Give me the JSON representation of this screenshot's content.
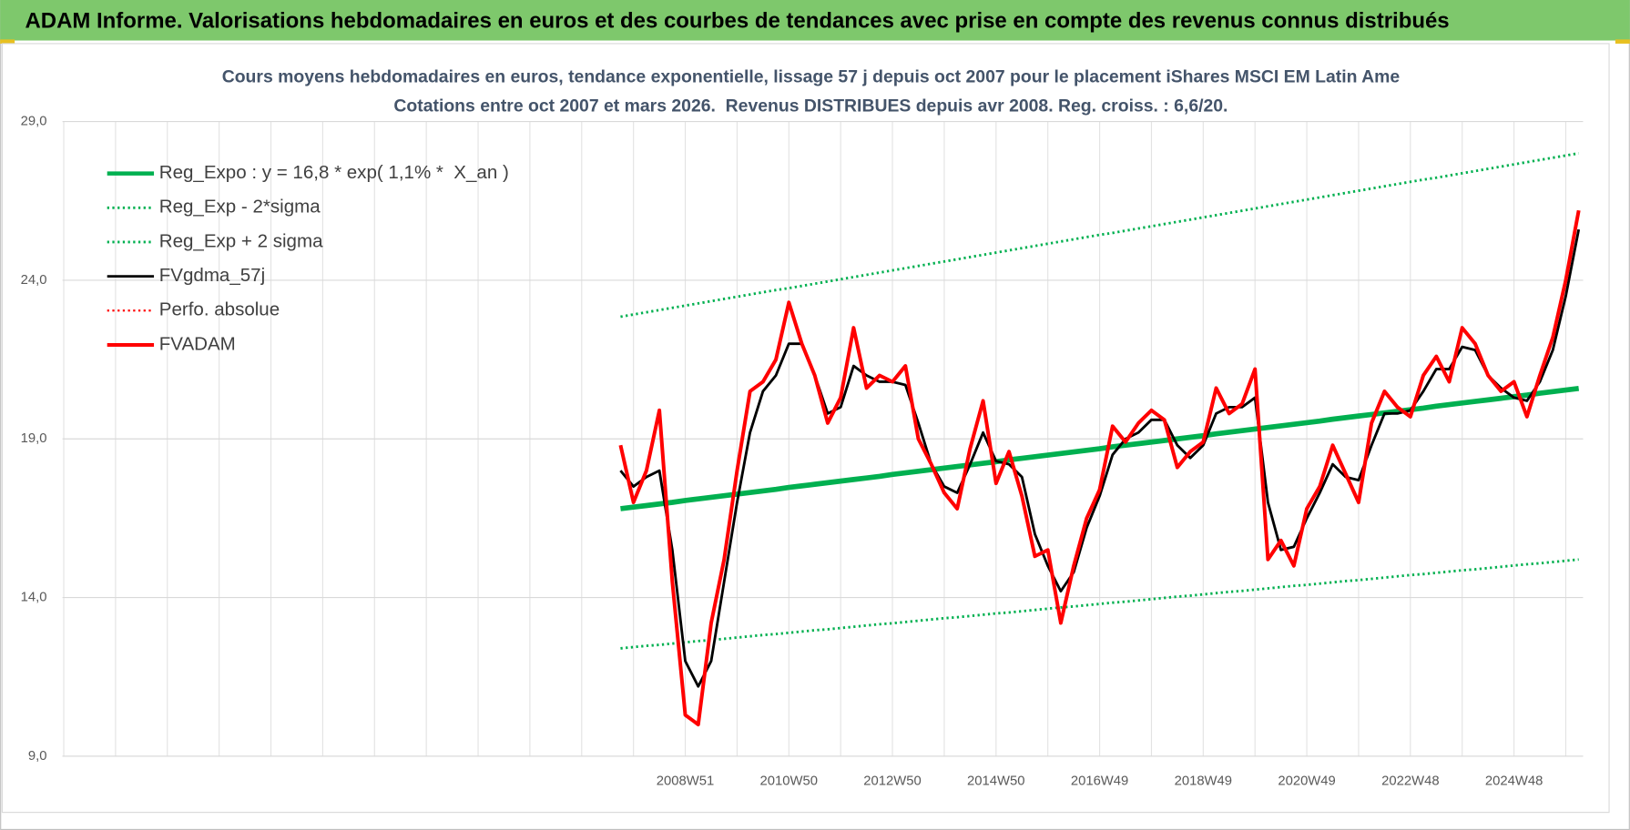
{
  "header": {
    "title": "ADAM Informe. Valorisations hebdomadaires en euros et des courbes de tendances avec prise en compte des revenus connus distribués"
  },
  "chart_data": {
    "type": "line",
    "title": "Cours moyens hebdomadaires en euros, tendance exponentielle, lissage 57 j depuis oct 2007 pour le placement iShares MSCI EM Latin Ame",
    "subtitle": "Cotations entre oct 2007 et mars 2026.  Revenus DISTRIBUES depuis avr 2008. Reg. croiss. : 6,6/20.",
    "categories": [
      null,
      null,
      null,
      null,
      null,
      null,
      null,
      null,
      null,
      null,
      null,
      null,
      null,
      null,
      null,
      null,
      null,
      null,
      null,
      null,
      null,
      null,
      null,
      null,
      null,
      null,
      null,
      null,
      null,
      null,
      null,
      null,
      null,
      null,
      null,
      null,
      null,
      null,
      null,
      null,
      null,
      null,
      null,
      null,
      null,
      null,
      null,
      null,
      "2008W51",
      null,
      null,
      null,
      null,
      null,
      null,
      null,
      "2010W50",
      null,
      null,
      null,
      null,
      null,
      null,
      null,
      "2012W50",
      null,
      null,
      null,
      null,
      null,
      null,
      null,
      "2014W50",
      null,
      null,
      null,
      null,
      null,
      null,
      null,
      "2016W49",
      null,
      null,
      null,
      null,
      null,
      null,
      null,
      "2018W49",
      null,
      null,
      null,
      null,
      null,
      null,
      null,
      "2020W49",
      null,
      null,
      null,
      null,
      null,
      null,
      null,
      "2022W48",
      null,
      null,
      null,
      null,
      null,
      null,
      null,
      "2024W48",
      null,
      null,
      null,
      null,
      null
    ],
    "ylim": [
      9,
      29
    ],
    "yticks": [
      {
        "value": 9,
        "label": "9,0"
      },
      {
        "value": 14,
        "label": "14,0"
      },
      {
        "value": 19,
        "label": "19,0"
      },
      {
        "value": 24,
        "label": "24,0"
      },
      {
        "value": 29,
        "label": "29,0"
      }
    ],
    "grid": true,
    "legend": "top-left",
    "series": [
      {
        "name": "Reg_Expo : y = 16,8 * exp( 1,1% *  X_an )",
        "color": "#00b050",
        "dash": "solid",
        "width": 5,
        "values": [
          null,
          null,
          null,
          null,
          null,
          null,
          null,
          null,
          null,
          null,
          null,
          null,
          null,
          null,
          null,
          null,
          null,
          null,
          null,
          null,
          null,
          null,
          null,
          null,
          null,
          null,
          null,
          null,
          null,
          null,
          null,
          null,
          null,
          null,
          null,
          null,
          null,
          null,
          null,
          null,
          null,
          null,
          null,
          16.8,
          16.85,
          16.9,
          16.95,
          17.0,
          17.06,
          17.11,
          17.16,
          17.21,
          17.26,
          17.31,
          17.36,
          17.41,
          17.47,
          17.52,
          17.57,
          17.62,
          17.67,
          17.72,
          17.77,
          17.82,
          17.88,
          17.93,
          17.98,
          18.03,
          18.08,
          18.13,
          18.18,
          18.23,
          18.28,
          18.34,
          18.39,
          18.44,
          18.49,
          18.54,
          18.59,
          18.64,
          18.69,
          18.75,
          18.8,
          18.85,
          18.9,
          18.95,
          19.0,
          19.05,
          19.1,
          19.16,
          19.21,
          19.26,
          19.31,
          19.36,
          19.41,
          19.46,
          19.51,
          19.56,
          19.62,
          19.67,
          19.72,
          19.77,
          19.82,
          19.87,
          19.92,
          19.97,
          20.03,
          20.08,
          20.13,
          20.18,
          20.23,
          20.28,
          20.33,
          20.38,
          20.44,
          20.49,
          20.54,
          20.59
        ]
      },
      {
        "name": "Reg_Exp - 2*sigma",
        "color": "#00b050",
        "dash": "dotted",
        "width": 2.5,
        "values": [
          null,
          null,
          null,
          null,
          null,
          null,
          null,
          null,
          null,
          null,
          null,
          null,
          null,
          null,
          null,
          null,
          null,
          null,
          null,
          null,
          null,
          null,
          null,
          null,
          null,
          null,
          null,
          null,
          null,
          null,
          null,
          null,
          null,
          null,
          null,
          null,
          null,
          null,
          null,
          null,
          null,
          null,
          null,
          12.4,
          12.44,
          12.48,
          12.51,
          12.55,
          12.59,
          12.63,
          12.66,
          12.7,
          12.74,
          12.78,
          12.82,
          12.85,
          12.89,
          12.93,
          12.97,
          13.0,
          13.04,
          13.08,
          13.12,
          13.16,
          13.19,
          13.23,
          13.27,
          13.31,
          13.35,
          13.38,
          13.42,
          13.46,
          13.5,
          13.53,
          13.57,
          13.61,
          13.65,
          13.69,
          13.72,
          13.76,
          13.8,
          13.84,
          13.87,
          13.91,
          13.95,
          13.99,
          14.03,
          14.06,
          14.1,
          14.14,
          14.18,
          14.21,
          14.25,
          14.29,
          14.33,
          14.37,
          14.4,
          14.44,
          14.48,
          14.52,
          14.55,
          14.59,
          14.63,
          14.67,
          14.71,
          14.74,
          14.78,
          14.82,
          14.86,
          14.89,
          14.93,
          14.97,
          15.01,
          15.05,
          15.08,
          15.12,
          15.16,
          15.2
        ]
      },
      {
        "name": "Reg_Exp + 2 sigma",
        "color": "#00b050",
        "dash": "dotted",
        "width": 2.5,
        "values": [
          null,
          null,
          null,
          null,
          null,
          null,
          null,
          null,
          null,
          null,
          null,
          null,
          null,
          null,
          null,
          null,
          null,
          null,
          null,
          null,
          null,
          null,
          null,
          null,
          null,
          null,
          null,
          null,
          null,
          null,
          null,
          null,
          null,
          null,
          null,
          null,
          null,
          null,
          null,
          null,
          null,
          null,
          null,
          22.85,
          22.92,
          22.99,
          23.06,
          23.13,
          23.2,
          23.27,
          23.34,
          23.41,
          23.48,
          23.55,
          23.62,
          23.69,
          23.75,
          23.82,
          23.89,
          23.96,
          24.03,
          24.1,
          24.17,
          24.24,
          24.31,
          24.38,
          24.45,
          24.52,
          24.59,
          24.66,
          24.73,
          24.8,
          24.87,
          24.94,
          25.01,
          25.08,
          25.15,
          25.22,
          25.29,
          25.36,
          25.43,
          25.49,
          25.56,
          25.63,
          25.7,
          25.77,
          25.84,
          25.91,
          25.98,
          26.05,
          26.12,
          26.19,
          26.26,
          26.33,
          26.4,
          26.47,
          26.54,
          26.61,
          26.68,
          26.75,
          26.82,
          26.89,
          26.96,
          27.03,
          27.1,
          27.17,
          27.23,
          27.3,
          27.37,
          27.44,
          27.51,
          27.58,
          27.65,
          27.72,
          27.79,
          27.86,
          27.93,
          28.0
        ]
      },
      {
        "name": "FVgdma_57j",
        "color": "#000000",
        "dash": "solid",
        "width": 2.5,
        "values": [
          null,
          null,
          null,
          null,
          null,
          null,
          null,
          null,
          null,
          null,
          null,
          null,
          null,
          null,
          null,
          null,
          null,
          null,
          null,
          null,
          null,
          null,
          null,
          null,
          null,
          null,
          null,
          null,
          null,
          null,
          null,
          null,
          null,
          null,
          null,
          null,
          null,
          null,
          null,
          null,
          null,
          null,
          null,
          18.0,
          17.5,
          17.8,
          18.0,
          15.5,
          12.0,
          11.2,
          12.0,
          14.5,
          17.0,
          19.2,
          20.5,
          21.0,
          22.0,
          22.0,
          21.0,
          19.8,
          20.0,
          21.3,
          21.0,
          20.8,
          20.8,
          20.7,
          19.5,
          18.2,
          17.5,
          17.3,
          18.2,
          19.2,
          18.3,
          18.2,
          17.8,
          16.0,
          15.0,
          14.2,
          14.8,
          16.2,
          17.2,
          18.5,
          19.0,
          19.2,
          19.6,
          19.6,
          18.8,
          18.4,
          18.8,
          19.8,
          20.0,
          20.0,
          20.3,
          17.0,
          15.5,
          15.6,
          16.5,
          17.3,
          18.2,
          17.8,
          17.7,
          18.8,
          19.8,
          19.8,
          19.9,
          20.5,
          21.2,
          21.2,
          21.9,
          21.8,
          21.0,
          20.6,
          20.3,
          20.2,
          20.8,
          21.8,
          23.5,
          25.6
        ]
      },
      {
        "name": "Perfo. absolue",
        "color": "#ff0000",
        "dash": "dotted",
        "width": 2,
        "values": [
          null,
          null,
          null,
          null,
          null,
          null,
          null,
          null,
          null,
          null,
          null,
          null,
          null,
          null,
          null,
          null,
          null,
          null,
          null,
          null,
          null,
          null,
          null,
          null,
          null,
          null,
          null,
          null,
          null,
          null,
          null,
          null,
          null,
          null,
          null,
          null,
          null,
          null,
          null,
          null,
          null,
          null,
          null,
          null,
          null,
          null,
          null,
          null,
          null,
          null,
          null,
          null,
          null,
          null,
          null,
          null,
          null,
          null,
          null,
          null,
          null,
          null,
          null,
          null,
          null,
          null,
          null,
          null,
          null,
          null,
          null,
          null,
          null,
          null,
          null,
          null,
          null,
          null,
          null,
          null,
          null,
          null,
          null,
          null,
          null,
          null,
          null,
          null,
          null,
          null,
          null,
          null,
          null,
          null,
          null,
          null,
          null,
          null,
          null,
          null,
          null,
          null,
          null,
          null,
          null,
          null,
          null,
          null,
          null,
          null,
          null,
          null,
          null,
          null,
          null,
          null,
          null,
          null
        ]
      },
      {
        "name": "FVADAM",
        "color": "#ff0000",
        "dash": "solid",
        "width": 3.5,
        "values": [
          null,
          null,
          null,
          null,
          null,
          null,
          null,
          null,
          null,
          null,
          null,
          null,
          null,
          null,
          null,
          null,
          null,
          null,
          null,
          null,
          null,
          null,
          null,
          null,
          null,
          null,
          null,
          null,
          null,
          null,
          null,
          null,
          null,
          null,
          null,
          null,
          null,
          null,
          null,
          null,
          null,
          null,
          null,
          18.8,
          17.0,
          18.0,
          19.9,
          14.5,
          10.3,
          10.0,
          13.2,
          15.2,
          18.0,
          20.5,
          20.8,
          21.5,
          23.3,
          22.0,
          21.0,
          19.5,
          20.3,
          22.5,
          20.6,
          21.0,
          20.8,
          21.3,
          19.0,
          18.2,
          17.3,
          16.8,
          18.7,
          20.2,
          17.6,
          18.6,
          17.2,
          15.3,
          15.5,
          13.2,
          15.0,
          16.5,
          17.4,
          19.4,
          18.9,
          19.5,
          19.9,
          19.6,
          18.1,
          18.6,
          18.9,
          20.6,
          19.8,
          20.1,
          21.2,
          15.2,
          15.8,
          15.0,
          16.8,
          17.5,
          18.8,
          17.9,
          17.0,
          19.5,
          20.5,
          20.0,
          19.7,
          21.0,
          21.6,
          20.8,
          22.5,
          22.0,
          21.0,
          20.5,
          20.8,
          19.7,
          21.0,
          22.2,
          24.0,
          26.2
        ]
      }
    ]
  }
}
